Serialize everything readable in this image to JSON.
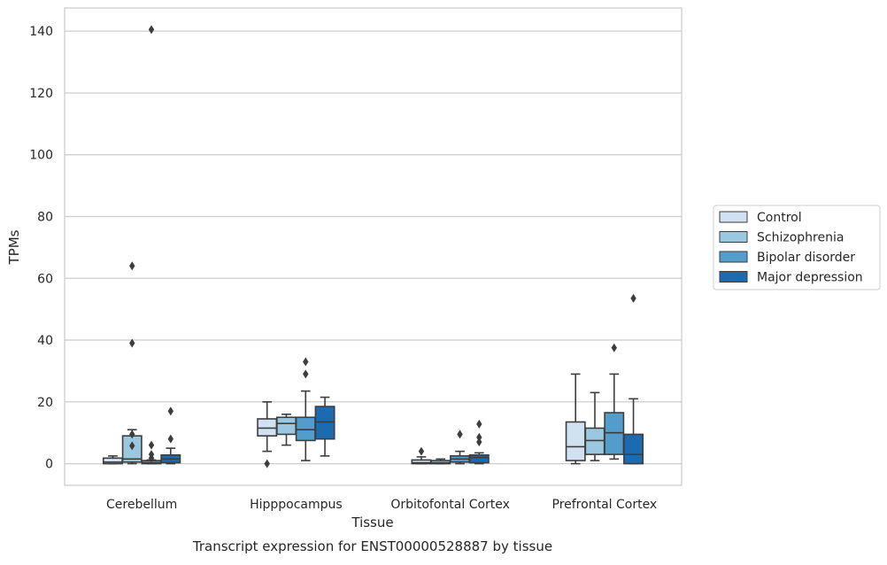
{
  "chart_data": {
    "type": "box",
    "title": "",
    "caption": "Transcript expression for ENST00000528887 by tissue",
    "xlabel": "Tissue",
    "ylabel": "TPMs",
    "ylim": [
      -7,
      147.5
    ],
    "yticks": [
      0,
      20,
      40,
      60,
      80,
      100,
      120,
      140
    ],
    "grid": "horizontal",
    "legend_position": "right",
    "categories": [
      "Cerebellum",
      "Hipppocampus",
      "Orbitofontal Cortex",
      "Prefrontal Cortex"
    ],
    "series": [
      {
        "name": "Control",
        "color": "#d0e1f2",
        "boxes": [
          {
            "whislo": 0,
            "q1": 0,
            "med": 0.5,
            "q3": 1.8,
            "whishi": 2.5,
            "fliers": []
          },
          {
            "whislo": 4,
            "q1": 9,
            "med": 11.5,
            "q3": 14.5,
            "whishi": 20,
            "fliers": [
              0
            ]
          },
          {
            "whislo": 0,
            "q1": 0,
            "med": 0.3,
            "q3": 1.2,
            "whishi": 2.2,
            "fliers": [
              4
            ]
          },
          {
            "whislo": 0,
            "q1": 1,
            "med": 5.5,
            "q3": 13.5,
            "whishi": 29,
            "fliers": []
          }
        ]
      },
      {
        "name": "Schizophrenia",
        "color": "#9ac8e0",
        "boxes": [
          {
            "whislo": 0,
            "q1": 0.5,
            "med": 1.5,
            "q3": 9,
            "whishi": 11,
            "fliers": [
              64,
              39,
              9.5,
              5.8
            ]
          },
          {
            "whislo": 6,
            "q1": 9.5,
            "med": 13,
            "q3": 15,
            "whishi": 16,
            "fliers": []
          },
          {
            "whislo": 0,
            "q1": 0,
            "med": 0.3,
            "q3": 1,
            "whishi": 1.5,
            "fliers": []
          },
          {
            "whislo": 1,
            "q1": 3,
            "med": 7.5,
            "q3": 11.5,
            "whishi": 23,
            "fliers": []
          }
        ]
      },
      {
        "name": "Bipolar disorder",
        "color": "#529dcc",
        "boxes": [
          {
            "whislo": 0,
            "q1": 0,
            "med": 0.3,
            "q3": 1,
            "whishi": 1.2,
            "fliers": [
              140.5,
              6,
              3,
              1.8
            ]
          },
          {
            "whislo": 1,
            "q1": 7.5,
            "med": 11,
            "q3": 15,
            "whishi": 23.5,
            "fliers": [
              33,
              29
            ]
          },
          {
            "whislo": 0,
            "q1": 0.5,
            "med": 1.5,
            "q3": 2.5,
            "whishi": 4,
            "fliers": [
              9.5
            ]
          },
          {
            "whislo": 1.5,
            "q1": 3,
            "med": 10,
            "q3": 16.5,
            "whishi": 29,
            "fliers": [
              37.5
            ]
          }
        ]
      },
      {
        "name": "Major depression",
        "color": "#1c6aaf",
        "boxes": [
          {
            "whislo": 0,
            "q1": 0.3,
            "med": 1.5,
            "q3": 2.8,
            "whishi": 5,
            "fliers": [
              17,
              8
            ]
          },
          {
            "whislo": 2.5,
            "q1": 8,
            "med": 13.5,
            "q3": 18.5,
            "whishi": 21.5,
            "fliers": []
          },
          {
            "whislo": 0,
            "q1": 0.3,
            "med": 2,
            "q3": 2.8,
            "whishi": 3.5,
            "fliers": [
              12.8,
              8.5,
              7
            ]
          },
          {
            "whislo": 0,
            "q1": 0,
            "med": 3,
            "q3": 9.5,
            "whishi": 21,
            "fliers": [
              53.5
            ]
          }
        ]
      }
    ]
  }
}
